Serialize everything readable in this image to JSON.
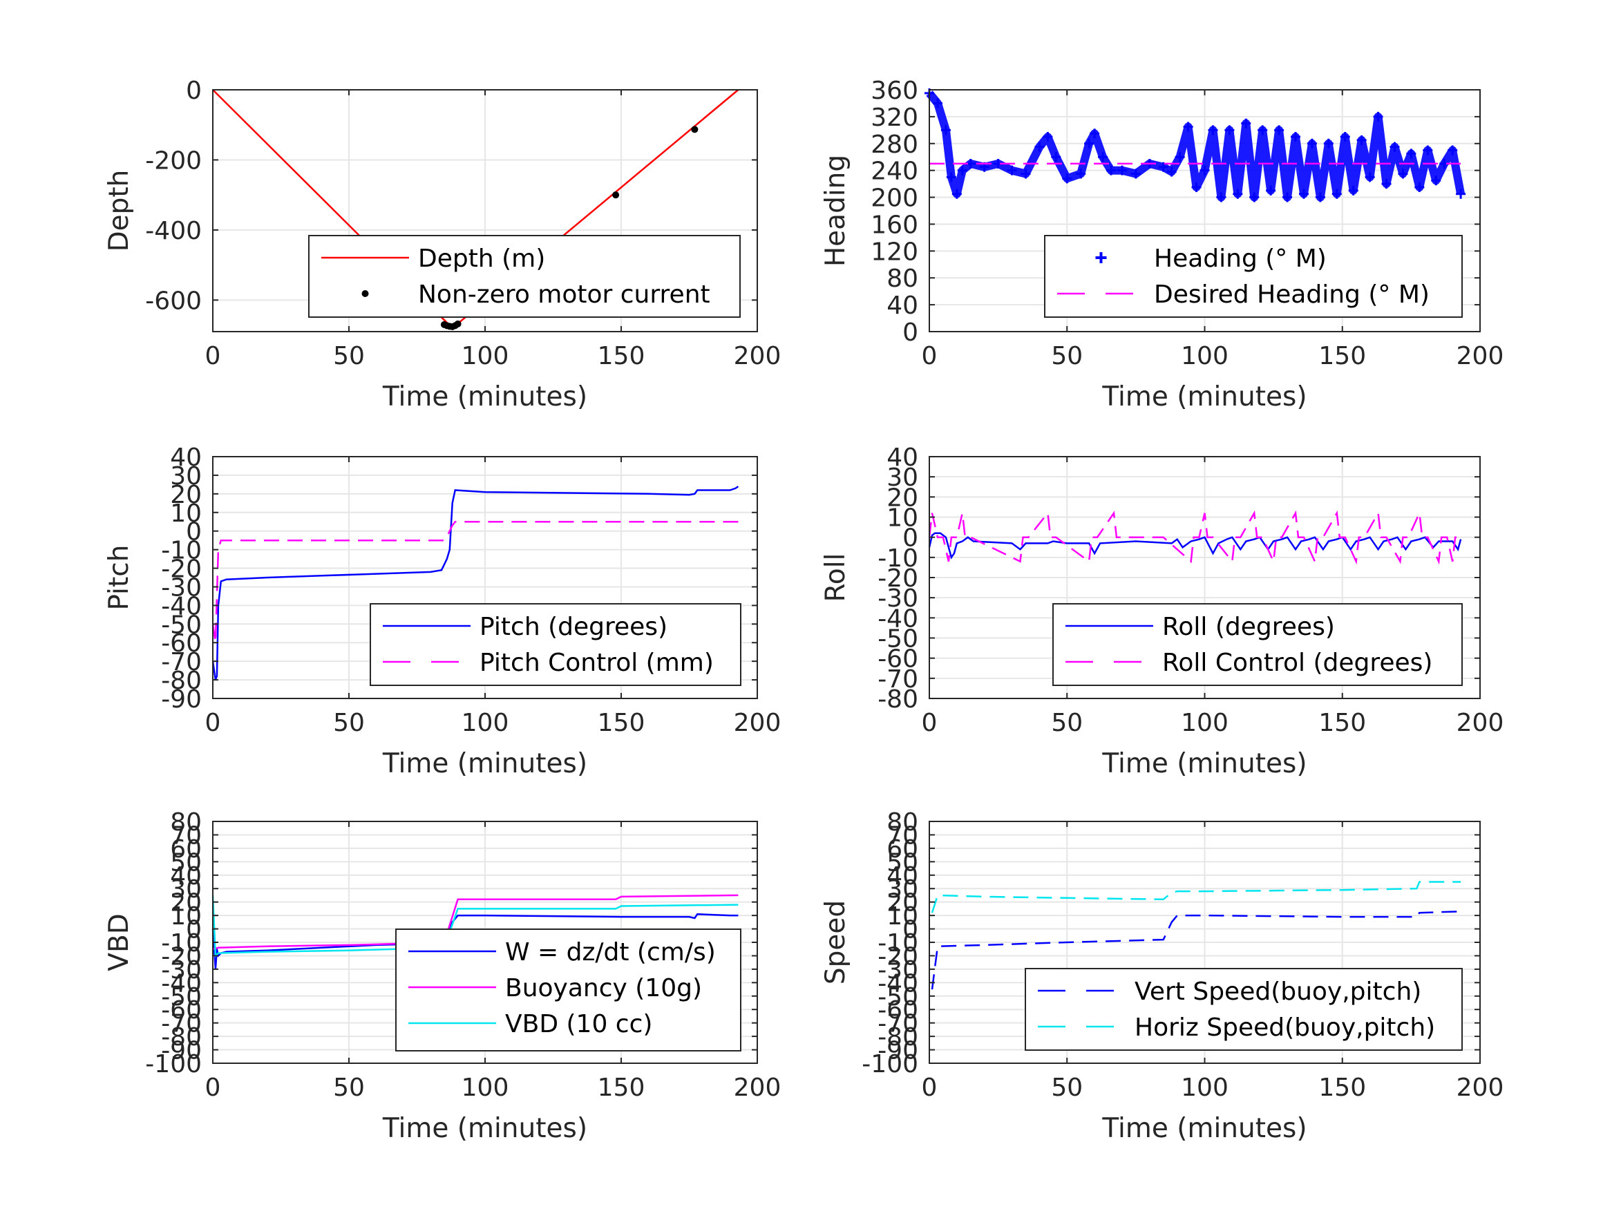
{
  "chart_data": [
    {
      "id": "depth",
      "type": "line",
      "xlabel": "Time (minutes)",
      "ylabel": "Depth",
      "xlim": [
        0,
        200
      ],
      "ylim": [
        -690,
        0
      ],
      "xticks": [
        0,
        50,
        100,
        150,
        200
      ],
      "yticks": [
        0,
        -200,
        -400,
        -600
      ],
      "grid": true,
      "legend_position": "lower-right",
      "series": [
        {
          "name": "Depth (m)",
          "style": "line",
          "color": "#ff0000",
          "x": [
            0,
            88,
            193
          ],
          "y": [
            0,
            -680,
            0
          ]
        },
        {
          "name": "Non-zero motor current",
          "style": "dots",
          "color": "#000000",
          "x": [
            85,
            86,
            87,
            88,
            89,
            90,
            148,
            177
          ],
          "y": [
            -670,
            -673,
            -675,
            -676,
            -673,
            -668,
            -300,
            -113
          ]
        }
      ]
    },
    {
      "id": "heading",
      "type": "line",
      "xlabel": "Time (minutes)",
      "ylabel": "Heading",
      "xlim": [
        0,
        200
      ],
      "ylim": [
        0,
        360
      ],
      "xticks": [
        0,
        50,
        100,
        150,
        200
      ],
      "yticks": [
        0,
        40,
        80,
        120,
        160,
        200,
        240,
        280,
        320,
        360
      ],
      "grid": true,
      "legend_position": "lower-right",
      "series": [
        {
          "name": "Heading (° M)",
          "style": "plus",
          "color": "#0000ff",
          "x": [
            0,
            3,
            6,
            8,
            10,
            12,
            15,
            20,
            25,
            30,
            35,
            40,
            43,
            46,
            50,
            55,
            58,
            60,
            63,
            66,
            70,
            75,
            80,
            85,
            88,
            91,
            94,
            97,
            100,
            103,
            106,
            109,
            112,
            115,
            118,
            121,
            124,
            127,
            130,
            133,
            136,
            139,
            142,
            145,
            148,
            151,
            154,
            157,
            160,
            163,
            166,
            169,
            172,
            175,
            178,
            181,
            184,
            187,
            190,
            193
          ],
          "y": [
            355,
            340,
            300,
            230,
            205,
            240,
            250,
            245,
            250,
            240,
            235,
            275,
            290,
            260,
            228,
            235,
            280,
            295,
            260,
            240,
            240,
            235,
            250,
            245,
            238,
            260,
            305,
            215,
            240,
            300,
            200,
            300,
            205,
            310,
            200,
            300,
            210,
            300,
            200,
            290,
            205,
            280,
            200,
            280,
            205,
            290,
            210,
            285,
            230,
            320,
            220,
            275,
            235,
            265,
            215,
            270,
            225,
            250,
            270,
            205
          ]
        },
        {
          "name": "Desired Heading (° M)",
          "style": "dashed",
          "color": "#ff00ff",
          "x": [
            0,
            193
          ],
          "y": [
            250,
            250
          ]
        }
      ]
    },
    {
      "id": "pitch",
      "type": "line",
      "xlabel": "Time (minutes)",
      "ylabel": "Pitch",
      "xlim": [
        0,
        200
      ],
      "ylim": [
        -90,
        40
      ],
      "xticks": [
        0,
        50,
        100,
        150,
        200
      ],
      "yticks": [
        40,
        30,
        20,
        10,
        0,
        -10,
        -20,
        -30,
        -40,
        -50,
        -60,
        -70,
        -80,
        -90
      ],
      "grid": true,
      "legend_position": "lower-right",
      "series": [
        {
          "name": "Pitch (degrees)",
          "style": "line",
          "color": "#0000ff",
          "x": [
            0,
            1,
            1.5,
            2,
            3,
            5,
            20,
            40,
            60,
            80,
            84,
            85,
            86,
            87,
            88,
            89,
            100,
            130,
            160,
            175,
            177,
            178,
            190,
            192,
            193
          ],
          "y": [
            -70,
            -80,
            -78,
            -40,
            -27,
            -26,
            -25,
            -24,
            -23,
            -22,
            -21,
            -18,
            -15,
            -10,
            15,
            22,
            21,
            20.5,
            20,
            19.5,
            20,
            22,
            22,
            23,
            24
          ]
        },
        {
          "name": "Pitch Control (mm)",
          "style": "dashed",
          "color": "#ff00ff",
          "x": [
            0,
            1,
            2,
            3,
            85,
            86,
            88,
            89,
            193
          ],
          "y": [
            -50,
            -60,
            -10,
            -5,
            -5,
            -3,
            3,
            5,
            5
          ]
        }
      ]
    },
    {
      "id": "roll",
      "type": "line",
      "xlabel": "Time (minutes)",
      "ylabel": "Roll",
      "xlim": [
        0,
        200
      ],
      "ylim": [
        -80,
        40
      ],
      "xticks": [
        0,
        50,
        100,
        150,
        200
      ],
      "yticks": [
        40,
        30,
        20,
        10,
        0,
        -10,
        -20,
        -30,
        -40,
        -50,
        -60,
        -70,
        -80
      ],
      "grid": true,
      "legend_position": "lower-right",
      "series": [
        {
          "name": "Roll (degrees)",
          "style": "line",
          "color": "#0000ff",
          "x": [
            0,
            1,
            2,
            4,
            6,
            8,
            9,
            10,
            12,
            14,
            16,
            30,
            33,
            35,
            43,
            45,
            50,
            58,
            60,
            62,
            75,
            88,
            90,
            92,
            95,
            98,
            100,
            103,
            105,
            108,
            110,
            113,
            115,
            118,
            120,
            123,
            125,
            128,
            130,
            133,
            135,
            138,
            140,
            143,
            145,
            148,
            150,
            153,
            155,
            158,
            160,
            163,
            165,
            168,
            170,
            173,
            175,
            178,
            180,
            183,
            185,
            190,
            192,
            193
          ],
          "y": [
            -5,
            1,
            2,
            2,
            0,
            -10,
            -8,
            -3,
            -2,
            0,
            -2,
            -3,
            -6,
            -3,
            -3,
            -2,
            -3,
            -3,
            -8,
            -3,
            -2,
            -3,
            -1,
            -5,
            -2,
            -1,
            0,
            -8,
            -3,
            -1,
            0,
            -6,
            -2,
            -1,
            0,
            -6,
            -2,
            -1,
            0,
            -6,
            -2,
            -1,
            0,
            -6,
            -2,
            -1,
            0,
            -6,
            -2,
            -1,
            0,
            -6,
            -2,
            -1,
            0,
            -6,
            -2,
            -1,
            0,
            -5,
            -2,
            -2,
            -6,
            -1
          ]
        },
        {
          "name": "Roll Control (degrees)",
          "style": "dashed",
          "color": "#ff00ff",
          "x": [
            0,
            1,
            3,
            5,
            7,
            8,
            10,
            12,
            13,
            15,
            33,
            34,
            36,
            43,
            44,
            46,
            58,
            59,
            61,
            67,
            68,
            70,
            85,
            95,
            96,
            98,
            100,
            101,
            103,
            110,
            111,
            113,
            118,
            119,
            121,
            125,
            126,
            128,
            133,
            134,
            136,
            140,
            141,
            143,
            148,
            149,
            151,
            155,
            156,
            158,
            163,
            164,
            166,
            171,
            172,
            174,
            178,
            179,
            181,
            185,
            186,
            188,
            190,
            191,
            193
          ],
          "y": [
            0,
            12,
            0,
            0,
            -12,
            0,
            0,
            12,
            0,
            0,
            -12,
            0,
            0,
            12,
            0,
            0,
            -12,
            0,
            0,
            12,
            0,
            0,
            0,
            -12,
            0,
            0,
            12,
            0,
            0,
            -12,
            0,
            0,
            12,
            0,
            0,
            -12,
            0,
            0,
            12,
            0,
            0,
            -12,
            0,
            0,
            12,
            0,
            0,
            -12,
            0,
            0,
            12,
            0,
            0,
            -12,
            0,
            0,
            12,
            0,
            0,
            -12,
            0,
            0,
            -12,
            0,
            0
          ]
        }
      ]
    },
    {
      "id": "vbd",
      "type": "line",
      "xlabel": "Time (minutes)",
      "ylabel": "VBD",
      "xlim": [
        0,
        200
      ],
      "ylim": [
        -100,
        80
      ],
      "xticks": [
        0,
        50,
        100,
        150,
        200
      ],
      "yticks": [
        -100,
        -90,
        -80,
        -70,
        -60,
        -50,
        -40,
        -30,
        -20,
        -10,
        0,
        10,
        20,
        30,
        40,
        50,
        60,
        70,
        80
      ],
      "grid": true,
      "legend_position": "lower-right",
      "series": [
        {
          "name": "W = dz/dt (cm/s)",
          "style": "line",
          "color": "#0000ff",
          "x": [
            0,
            1,
            1.5,
            2,
            3,
            5,
            20,
            40,
            60,
            80,
            85,
            86,
            88,
            90,
            95,
            100,
            150,
            175,
            177,
            178,
            190,
            193
          ],
          "y": [
            0,
            -30,
            -15,
            -20,
            -18,
            -17,
            -16,
            -14,
            -12,
            -11,
            -10,
            -5,
            5,
            10,
            10,
            10,
            9,
            9,
            8,
            11,
            10,
            10
          ]
        },
        {
          "name": "Buoyancy (10g)",
          "style": "line",
          "color": "#ff00ff",
          "x": [
            0,
            2,
            20,
            50,
            85,
            90,
            100,
            148,
            150,
            193
          ],
          "y": [
            -15,
            -14,
            -13,
            -12,
            -10,
            22,
            22,
            22,
            24,
            25
          ]
        },
        {
          "name": "VBD (10 cc)",
          "style": "line",
          "color": "#00e5ee",
          "x": [
            0,
            1,
            2,
            20,
            50,
            85,
            90,
            100,
            148,
            150,
            193
          ],
          "y": [
            25,
            -20,
            -18,
            -17,
            -16,
            -14,
            15,
            15,
            15,
            17,
            18
          ]
        }
      ]
    },
    {
      "id": "speed",
      "type": "line",
      "xlabel": "Time (minutes)",
      "ylabel": "Speed",
      "xlim": [
        0,
        200
      ],
      "ylim": [
        -100,
        80
      ],
      "xticks": [
        0,
        50,
        100,
        150,
        200
      ],
      "yticks": [
        -100,
        -90,
        -80,
        -70,
        -60,
        -50,
        -40,
        -30,
        -20,
        -10,
        0,
        10,
        20,
        30,
        40,
        50,
        60,
        70,
        80
      ],
      "grid": true,
      "legend_position": "lower-right",
      "series": [
        {
          "name": "Vert Speed(buoy,pitch)",
          "style": "dashed",
          "color": "#0000ff",
          "x": [
            1,
            3,
            20,
            50,
            85,
            88,
            90,
            100,
            150,
            177,
            178,
            193
          ],
          "y": [
            -45,
            -13,
            -12,
            -10,
            -8,
            5,
            10,
            10,
            9,
            9,
            12,
            13
          ]
        },
        {
          "name": "Horiz Speed(buoy,pitch)",
          "style": "dashed",
          "color": "#00e5ee",
          "x": [
            1,
            3,
            20,
            50,
            85,
            88,
            90,
            100,
            150,
            177,
            178,
            193
          ],
          "y": [
            12,
            25,
            24,
            23,
            22,
            27,
            28,
            28,
            29,
            30,
            35,
            35
          ]
        }
      ]
    }
  ]
}
